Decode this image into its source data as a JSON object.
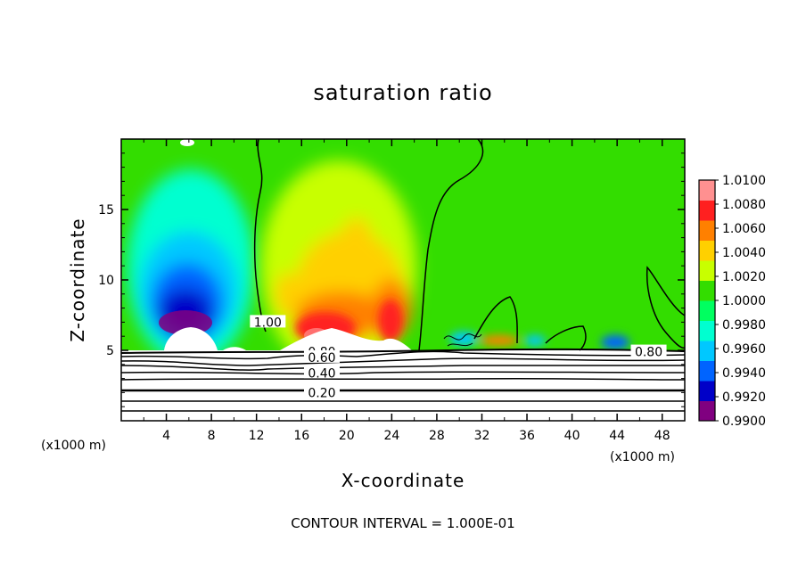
{
  "chart_data": {
    "type": "heatmap",
    "title": "saturation ratio",
    "xlabel": "X-coordinate",
    "ylabel": "Z-coordinate",
    "x_unit_label": "(x1000 m)",
    "x_unit_label_2": "(x1000 m)",
    "xlim": [
      0,
      50
    ],
    "ylim": [
      0,
      20
    ],
    "xticks": [
      4,
      8,
      12,
      16,
      20,
      24,
      28,
      32,
      36,
      40,
      44,
      48
    ],
    "yticks": [
      5,
      10,
      15
    ],
    "colorbar": {
      "min": 0.99,
      "max": 1.01,
      "labels": [
        "1.0100",
        "1.0080",
        "1.0060",
        "1.0040",
        "1.0020",
        "1.0000",
        "0.9980",
        "0.9960",
        "0.9940",
        "0.9920",
        "0.9900"
      ],
      "colors": [
        "#800080",
        "#0000c8",
        "#0064ff",
        "#00c8ff",
        "#00ffd0",
        "#00ff60",
        "#33dd00",
        "#c8ff00",
        "#ffd000",
        "#ff8000",
        "#ff2020",
        "#ff9090"
      ]
    },
    "contour_labels": [
      {
        "text": "1.00",
        "x": 13.0,
        "z": 7.0
      },
      {
        "text": "0.80",
        "x": 17.8,
        "z": 4.9
      },
      {
        "text": "0.60",
        "x": 17.8,
        "z": 4.5
      },
      {
        "text": "0.40",
        "x": 17.8,
        "z": 3.4
      },
      {
        "text": "0.20",
        "x": 17.8,
        "z": 2.0
      },
      {
        "text": "0.80",
        "x": 46.8,
        "z": 4.9
      }
    ],
    "footer": "CONTOUR INTERVAL = 1.000E-01"
  }
}
